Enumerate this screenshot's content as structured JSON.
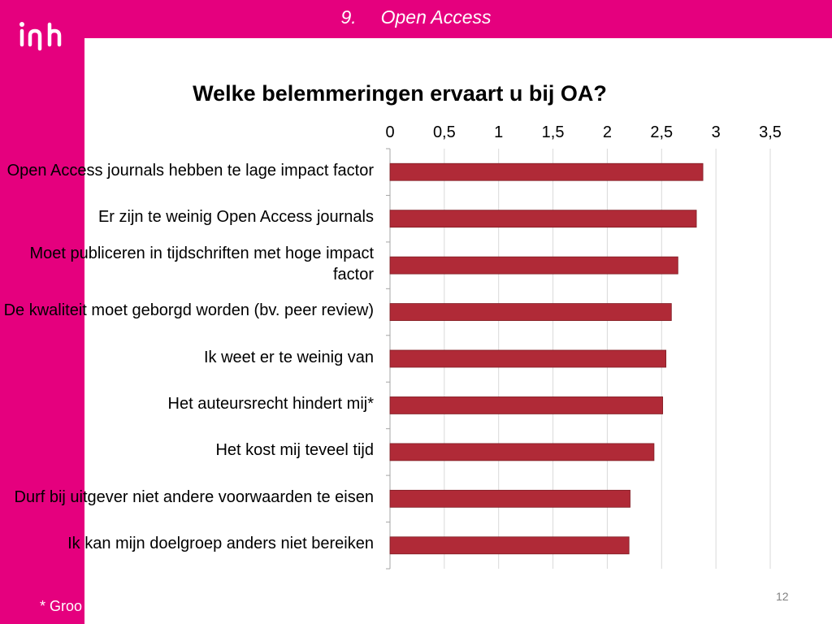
{
  "header": {
    "number": "9.",
    "title": "Open Access"
  },
  "logo": {
    "icon": "inholland-logo-icon"
  },
  "colors": {
    "brand": "#e5007e",
    "bar": "#b02a37",
    "grid": "#d9d9d9"
  },
  "footnote": "* Groo",
  "page_number": "12",
  "chart_data": {
    "type": "bar",
    "orientation": "horizontal",
    "title": "Welke belemmeringen ervaart u bij OA?",
    "xlabel": "",
    "ylabel": "",
    "xlim": [
      0,
      3.5
    ],
    "ticks": [
      "0",
      "0,5",
      "1",
      "1,5",
      "2",
      "2,5",
      "3",
      "3,5"
    ],
    "axis_position": "top",
    "grid": true,
    "legend": "none",
    "categories": [
      "Open Access journals hebben te lage impact factor",
      "Er zijn te weinig Open Access journals",
      "Moet publiceren in tijdschriften met hoge impact factor",
      "De kwaliteit moet geborgd worden (bv. peer review)",
      "Ik weet er te weinig van",
      "Het auteursrecht hindert mij*",
      "Het kost mij teveel tijd",
      "Durf bij uitgever niet andere voorwaarden te eisen",
      "Ik kan mijn doelgroep anders niet bereiken"
    ],
    "values": [
      2.88,
      2.82,
      2.65,
      2.59,
      2.54,
      2.51,
      2.43,
      2.21,
      2.2
    ]
  }
}
